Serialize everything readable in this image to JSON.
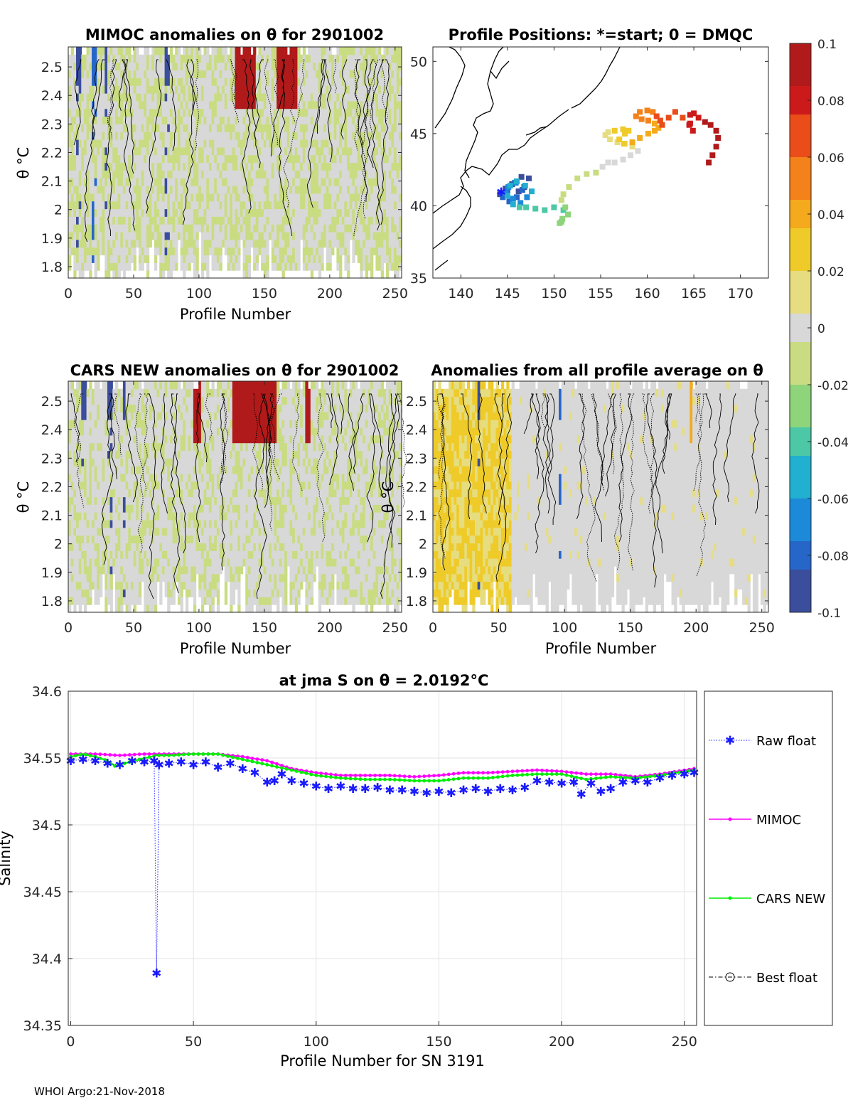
{
  "footer": "WHOI Argo:21-Nov-2018",
  "colors": {
    "raw": "#1a1aff",
    "mimoc": "#ff00ff",
    "cars": "#00ee00",
    "best": "#000000",
    "colormap": [
      "#3a4e9c",
      "#2566c8",
      "#1c8ad8",
      "#22b0d0",
      "#4cc8a6",
      "#8ed47a",
      "#c9dc82",
      "#d8d8d8",
      "#e6dd80",
      "#efcb2a",
      "#f4aa1c",
      "#f4821a",
      "#ea4d1a",
      "#cc1a1a",
      "#b01a1a"
    ]
  },
  "chart_data": [
    {
      "type": "heatmap",
      "id": "mimoc",
      "title": "MIMOC anomalies on θ  for 2901002",
      "xlabel": "Profile Number",
      "ylabel": "θ °C",
      "xlim": [
        0,
        255
      ],
      "ylim": [
        1.76,
        2.57
      ],
      "xticks": [
        "0",
        "50",
        "100",
        "150",
        "200",
        "250"
      ],
      "yticks": [
        "1.8",
        "1.9",
        "2",
        "2.1",
        "2.2",
        "2.3",
        "2.4",
        "2.5"
      ],
      "base_anomaly": -0.006,
      "hot_columns": [
        {
          "from": 128,
          "to": 144,
          "value": 0.1
        },
        {
          "from": 160,
          "to": 172,
          "value": 0.1
        },
        {
          "from": 170,
          "to": 176,
          "value": 0.09
        }
      ],
      "cold_columns": [
        {
          "from": 5,
          "to": 10,
          "value": -0.09
        },
        {
          "from": 18,
          "to": 22,
          "value": -0.08
        },
        {
          "from": 28,
          "to": 30,
          "value": -0.1
        },
        {
          "from": 74,
          "to": 78,
          "value": -0.09
        }
      ]
    },
    {
      "type": "scatter",
      "id": "map",
      "title": "Profile Positions: *=start; 0 = DMQC",
      "xlim": [
        137,
        173
      ],
      "ylim": [
        35,
        51
      ],
      "xticks": [
        "140",
        "145",
        "150",
        "155",
        "160",
        "165",
        "170"
      ],
      "yticks": [
        "35",
        "40",
        "45",
        "50"
      ],
      "track_lon": [
        144.2,
        144.8,
        145.5,
        146.2,
        146.8,
        147.3,
        146.5,
        145.8,
        145.0,
        144.5,
        145.2,
        146.0,
        146.6,
        145.9,
        145.1,
        144.8,
        145.6,
        146.4,
        147.1,
        147.6,
        146.9,
        146.0,
        145.3,
        145.0,
        145.6,
        146.3,
        147.0,
        148.0,
        149.0,
        150.0,
        151.0,
        151.5,
        150.9,
        150.6,
        150.8,
        151.5,
        151.2,
        150.8,
        151.0,
        151.6,
        152.5,
        153.5,
        154.5,
        155.2,
        155.8,
        156.5,
        157.4,
        158.2,
        159.0,
        158.4,
        157.6,
        156.8,
        156.0,
        155.5,
        155.8,
        156.5,
        157.4,
        158.0,
        157.6,
        157.0,
        157.5,
        158.4,
        159.2,
        160.1,
        160.8,
        161.2,
        160.8,
        160.1,
        159.4,
        158.8,
        159.2,
        160.0,
        160.6,
        161.0,
        161.4,
        161.6,
        162.3,
        163.0,
        163.8,
        164.5,
        164.9,
        164.6,
        164.6,
        165.0,
        165.5,
        166.2,
        166.8,
        167.4,
        167.6,
        167.4,
        167.0,
        166.6
      ],
      "track_lat": [
        40.8,
        41.2,
        41.5,
        41.0,
        41.3,
        41.9,
        42.0,
        41.6,
        41.1,
        40.6,
        40.3,
        40.6,
        41.1,
        41.6,
        41.3,
        40.9,
        40.5,
        40.2,
        40.6,
        41.0,
        41.4,
        41.7,
        41.4,
        40.7,
        40.1,
        39.9,
        39.9,
        39.8,
        39.7,
        39.9,
        39.7,
        39.4,
        39.1,
        38.8,
        38.9,
        39.4,
        39.9,
        40.4,
        40.8,
        41.3,
        41.9,
        42.2,
        42.3,
        42.7,
        43.0,
        43.0,
        43.2,
        43.5,
        43.8,
        44.1,
        44.3,
        44.4,
        44.6,
        44.9,
        45.1,
        45.2,
        45.3,
        45.2,
        45.0,
        44.6,
        44.3,
        44.4,
        44.7,
        45.0,
        45.2,
        45.4,
        45.7,
        45.9,
        46.0,
        46.2,
        46.5,
        46.6,
        46.5,
        46.2,
        45.9,
        45.6,
        46.1,
        46.5,
        46.1,
        45.6,
        45.2,
        45.7,
        46.3,
        46.4,
        46.1,
        45.8,
        45.6,
        45.2,
        44.7,
        44.1,
        43.5,
        43.0
      ]
    },
    {
      "type": "heatmap",
      "id": "cars",
      "title": "CARS NEW anomalies on θ for 2901002",
      "xlabel": "Profile Number",
      "ylabel": "θ °C",
      "xlim": [
        0,
        255
      ],
      "ylim": [
        1.76,
        2.57
      ],
      "xticks": [
        "0",
        "50",
        "100",
        "150",
        "200",
        "250"
      ],
      "yticks": [
        "1.8",
        "1.9",
        "2",
        "2.1",
        "2.2",
        "2.3",
        "2.4",
        "2.5"
      ],
      "base_anomaly": -0.005,
      "hot_columns": [
        {
          "from": 95,
          "to": 102,
          "value": 0.1
        },
        {
          "from": 126,
          "to": 160,
          "value": 0.1
        },
        {
          "from": 182,
          "to": 186,
          "value": 0.1
        }
      ],
      "cold_columns": [
        {
          "from": 10,
          "to": 14,
          "value": -0.09
        },
        {
          "from": 30,
          "to": 34,
          "value": -0.09
        },
        {
          "from": 42,
          "to": 44,
          "value": -0.1
        }
      ]
    },
    {
      "type": "heatmap",
      "id": "avg",
      "title": "Anomalies from all profile average on θ",
      "xlabel": "Profile Number",
      "ylabel": "θ °C",
      "xlim": [
        0,
        255
      ],
      "ylim": [
        1.76,
        2.57
      ],
      "xticks": [
        "0",
        "50",
        "100",
        "150",
        "200",
        "250"
      ],
      "yticks": [
        "1.8",
        "1.9",
        "2",
        "2.1",
        "2.2",
        "2.3",
        "2.4",
        "2.5"
      ],
      "base_anomaly": 0.002,
      "warm_band": {
        "from": 0,
        "to": 60,
        "value": 0.022
      },
      "hot_columns": [
        {
          "from": 196,
          "to": 198,
          "value": 0.035
        }
      ],
      "cold_columns": [
        {
          "from": 34,
          "to": 36,
          "value": -0.09
        },
        {
          "from": 96,
          "to": 97,
          "value": -0.08
        }
      ]
    },
    {
      "type": "colorbar",
      "id": "colorbar",
      "range": [
        -0.1,
        0.1
      ],
      "ticks": [
        "0.1",
        "0.08",
        "0.06",
        "0.04",
        "0.02",
        "0",
        "-0.02",
        "-0.04",
        "-0.06",
        "-0.08",
        "-0.1"
      ]
    },
    {
      "type": "line",
      "id": "salinity",
      "title": "at jma S on θ = 2.0192",
      "title_unit": "°C",
      "xlabel": "Profile Number for SN 3191",
      "ylabel": "Salinity",
      "xlim": [
        -1,
        255
      ],
      "ylim": [
        34.35,
        34.6
      ],
      "xticks": [
        0,
        50,
        100,
        150,
        200,
        250
      ],
      "yticks": [
        34.35,
        34.4,
        34.45,
        34.5,
        34.55,
        34.6
      ],
      "ytick_labels": [
        "34.35",
        "34.4",
        "34.45",
        "34.5",
        "34.55",
        "34.6"
      ],
      "series": [
        {
          "name": "MIMOC",
          "style": "line-dot",
          "x": [
            0,
            10,
            20,
            30,
            40,
            50,
            60,
            70,
            80,
            90,
            100,
            110,
            120,
            130,
            140,
            150,
            160,
            170,
            180,
            190,
            200,
            210,
            220,
            230,
            240,
            254
          ],
          "y": [
            34.553,
            34.553,
            34.552,
            34.553,
            34.553,
            34.553,
            34.553,
            34.551,
            34.548,
            34.542,
            34.539,
            34.537,
            34.537,
            34.537,
            34.536,
            34.537,
            34.539,
            34.539,
            34.54,
            34.541,
            34.54,
            34.538,
            34.538,
            34.536,
            34.538,
            34.542
          ]
        },
        {
          "name": "CARS NEW",
          "style": "line-dot",
          "x": [
            0,
            5,
            10,
            15,
            18,
            22,
            28,
            35,
            40,
            50,
            60,
            70,
            80,
            90,
            100,
            110,
            120,
            130,
            140,
            150,
            160,
            170,
            180,
            190,
            200,
            210,
            220,
            230,
            240,
            254
          ],
          "y": [
            34.551,
            34.553,
            34.551,
            34.548,
            34.544,
            34.546,
            34.549,
            34.552,
            34.552,
            34.553,
            34.553,
            34.549,
            34.545,
            34.541,
            34.537,
            34.535,
            34.534,
            34.534,
            34.533,
            34.533,
            34.535,
            34.535,
            34.537,
            34.538,
            34.538,
            34.534,
            34.536,
            34.535,
            34.537,
            34.541
          ]
        },
        {
          "name": "Raw float",
          "style": "star-dotted",
          "x": [
            0,
            5,
            10,
            15,
            20,
            25,
            30,
            34,
            35,
            36,
            40,
            45,
            50,
            55,
            60,
            65,
            70,
            75,
            80,
            83,
            86,
            90,
            95,
            100,
            105,
            110,
            115,
            120,
            125,
            130,
            135,
            140,
            145,
            150,
            155,
            160,
            165,
            170,
            175,
            180,
            185,
            190,
            195,
            200,
            205,
            208,
            212,
            216,
            220,
            225,
            230,
            235,
            240,
            245,
            250,
            254
          ],
          "y": [
            34.548,
            34.549,
            34.548,
            34.546,
            34.545,
            34.548,
            34.547,
            34.548,
            34.389,
            34.545,
            34.546,
            34.547,
            34.545,
            34.547,
            34.543,
            34.546,
            34.542,
            34.539,
            34.532,
            34.533,
            34.538,
            34.533,
            34.531,
            34.529,
            34.527,
            34.529,
            34.527,
            34.527,
            34.528,
            34.526,
            34.526,
            34.525,
            34.524,
            34.525,
            34.524,
            34.526,
            34.527,
            34.525,
            34.527,
            34.526,
            34.528,
            34.533,
            34.532,
            34.531,
            34.532,
            34.523,
            34.531,
            34.525,
            34.527,
            34.532,
            34.533,
            34.532,
            34.535,
            34.537,
            34.538,
            34.539
          ]
        },
        {
          "name": "Best float",
          "style": "dashdot-circle",
          "x": [],
          "y": []
        }
      ]
    }
  ]
}
